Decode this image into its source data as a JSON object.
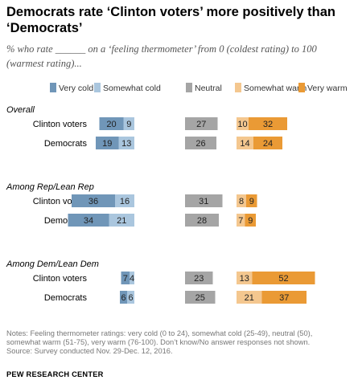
{
  "title": "Democrats rate ‘Clinton voters’ more positively than ‘Democrats’",
  "subtitle": "% who rate ______ on a ‘feeling thermometer’ from 0 (coldest rating) to 100 (warmest rating)...",
  "notes": {
    "note_lines": [
      "Notes: Feeling thermometer ratings: very cold (0 to 24), somewhat cold (25-49), neutral (50),",
      "somewhat warm (51-75), very warm (76-100). Don’t know/No answer responses not shown."
    ],
    "source": "Source: Survey conducted Nov. 29-Dec. 12, 2016."
  },
  "brand": "PEW RESEARCH CENTER",
  "chart_data": {
    "type": "bar",
    "stacked": true,
    "orientation": "horizontal",
    "legend_position": "top",
    "colors": {
      "Very cold": "#7096b8",
      "Somewhat cold": "#aac6de",
      "Neutral": "#a5a5a5",
      "Somewhat warm": "#f4c78f",
      "Very warm": "#ea9a35"
    },
    "series": [
      "Very cold",
      "Somewhat cold",
      "Neutral",
      "Somewhat warm",
      "Very warm"
    ],
    "groups": [
      {
        "name": "Overall",
        "rows": [
          {
            "label": "Clinton voters",
            "values": [
              20,
              9,
              27,
              10,
              32
            ]
          },
          {
            "label": "Democrats",
            "values": [
              19,
              13,
              26,
              14,
              24
            ]
          }
        ]
      },
      {
        "name": "Among Rep/Lean Rep",
        "rows": [
          {
            "label": "Clinton voters",
            "values": [
              36,
              16,
              31,
              8,
              9
            ]
          },
          {
            "label": "Democrats",
            "values": [
              34,
              21,
              28,
              7,
              9
            ]
          }
        ]
      },
      {
        "name": "Among Dem/Lean Dem",
        "rows": [
          {
            "label": "Clinton voters",
            "values": [
              7,
              4,
              23,
              13,
              52
            ]
          },
          {
            "label": "Democrats",
            "values": [
              6,
              6,
              25,
              21,
              37
            ]
          }
        ]
      }
    ]
  }
}
